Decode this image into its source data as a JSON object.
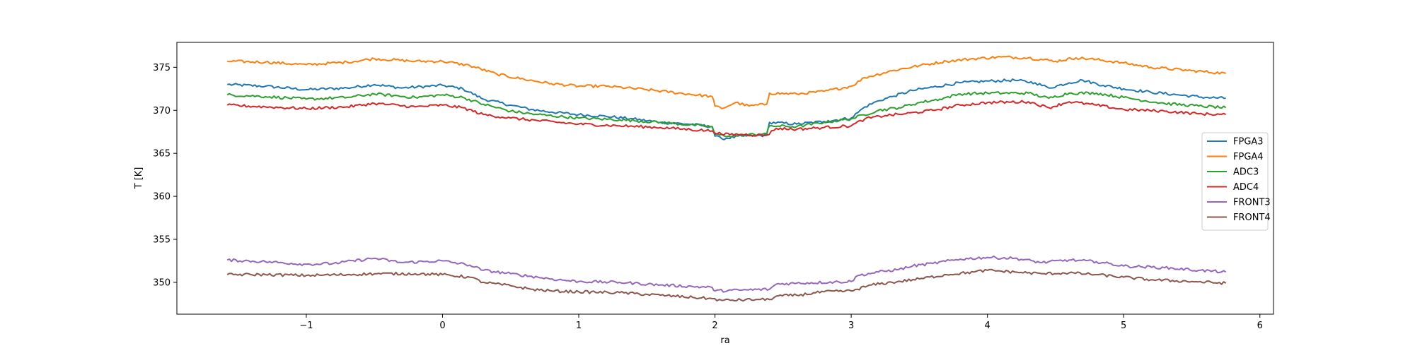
{
  "chart_data": {
    "type": "line",
    "title": "",
    "xlabel": "ra",
    "ylabel": "T [K]",
    "xlim": [
      -1.95,
      6.1
    ],
    "ylim": [
      346.3,
      377.9
    ],
    "xticks": [
      -1,
      0,
      1,
      2,
      3,
      4,
      5,
      6
    ],
    "xtick_labels": [
      "−1",
      "0",
      "1",
      "2",
      "3",
      "4",
      "5",
      "6"
    ],
    "yticks": [
      350,
      355,
      360,
      365,
      370,
      375
    ],
    "ytick_labels": [
      "350",
      "355",
      "360",
      "365",
      "370",
      "375"
    ],
    "grid": false,
    "legend": "center-right",
    "series": [
      {
        "name": "FPGA3",
        "color": "#1f77b4",
        "points": [
          [
            -1.58,
            373.0
          ],
          [
            -1.3,
            372.8
          ],
          [
            -1.0,
            372.4
          ],
          [
            -0.7,
            372.6
          ],
          [
            -0.5,
            373.0
          ],
          [
            -0.3,
            372.6
          ],
          [
            0.0,
            372.9
          ],
          [
            0.15,
            372.5
          ],
          [
            0.3,
            371.3
          ],
          [
            0.5,
            370.6
          ],
          [
            0.65,
            370.1
          ],
          [
            0.8,
            369.8
          ],
          [
            1.0,
            369.5
          ],
          [
            1.2,
            369.3
          ],
          [
            1.4,
            369.0
          ],
          [
            1.6,
            368.6
          ],
          [
            1.8,
            368.4
          ],
          [
            1.98,
            368.1
          ],
          [
            2.0,
            367.0
          ],
          [
            2.05,
            366.7
          ],
          [
            2.2,
            367.0
          ],
          [
            2.38,
            367.1
          ],
          [
            2.4,
            368.6
          ],
          [
            2.6,
            368.4
          ],
          [
            2.8,
            368.7
          ],
          [
            3.0,
            369.1
          ],
          [
            3.1,
            370.4
          ],
          [
            3.2,
            371.1
          ],
          [
            3.3,
            371.6
          ],
          [
            3.45,
            372.3
          ],
          [
            3.6,
            372.7
          ],
          [
            3.8,
            373.2
          ],
          [
            4.0,
            373.4
          ],
          [
            4.2,
            373.5
          ],
          [
            4.35,
            373.2
          ],
          [
            4.45,
            372.6
          ],
          [
            4.6,
            373.2
          ],
          [
            4.7,
            373.5
          ],
          [
            4.85,
            372.9
          ],
          [
            5.0,
            372.5
          ],
          [
            5.2,
            372.1
          ],
          [
            5.4,
            371.8
          ],
          [
            5.6,
            371.5
          ],
          [
            5.75,
            371.4
          ]
        ]
      },
      {
        "name": "FPGA4",
        "color": "#ff7f0e",
        "points": [
          [
            -1.58,
            375.7
          ],
          [
            -1.3,
            375.6
          ],
          [
            -1.0,
            375.3
          ],
          [
            -0.7,
            375.6
          ],
          [
            -0.5,
            376.0
          ],
          [
            -0.2,
            375.7
          ],
          [
            0.0,
            375.7
          ],
          [
            0.2,
            375.2
          ],
          [
            0.4,
            374.2
          ],
          [
            0.6,
            373.6
          ],
          [
            0.8,
            373.1
          ],
          [
            1.0,
            372.8
          ],
          [
            1.2,
            372.8
          ],
          [
            1.5,
            372.4
          ],
          [
            1.8,
            371.9
          ],
          [
            1.98,
            371.6
          ],
          [
            2.0,
            370.5
          ],
          [
            2.05,
            370.2
          ],
          [
            2.15,
            370.9
          ],
          [
            2.25,
            370.5
          ],
          [
            2.38,
            370.7
          ],
          [
            2.4,
            372.0
          ],
          [
            2.6,
            371.9
          ],
          [
            2.8,
            372.2
          ],
          [
            3.0,
            372.8
          ],
          [
            3.1,
            373.8
          ],
          [
            3.3,
            374.6
          ],
          [
            3.5,
            375.2
          ],
          [
            3.7,
            375.7
          ],
          [
            3.9,
            376.0
          ],
          [
            4.1,
            376.2
          ],
          [
            4.3,
            376.1
          ],
          [
            4.5,
            375.7
          ],
          [
            4.65,
            376.1
          ],
          [
            4.8,
            375.9
          ],
          [
            5.0,
            375.5
          ],
          [
            5.2,
            375.0
          ],
          [
            5.5,
            374.6
          ],
          [
            5.75,
            374.3
          ]
        ]
      },
      {
        "name": "ADC3",
        "color": "#2ca02c",
        "points": [
          [
            -1.58,
            371.8
          ],
          [
            -1.3,
            371.6
          ],
          [
            -1.0,
            371.3
          ],
          [
            -0.7,
            371.5
          ],
          [
            -0.5,
            371.9
          ],
          [
            -0.2,
            371.5
          ],
          [
            0.0,
            371.8
          ],
          [
            0.15,
            371.5
          ],
          [
            0.3,
            370.7
          ],
          [
            0.5,
            369.9
          ],
          [
            0.7,
            369.5
          ],
          [
            1.0,
            369.1
          ],
          [
            1.3,
            368.9
          ],
          [
            1.6,
            368.6
          ],
          [
            1.98,
            368.1
          ],
          [
            2.0,
            367.2
          ],
          [
            2.1,
            367.0
          ],
          [
            2.38,
            367.3
          ],
          [
            2.4,
            368.2
          ],
          [
            2.6,
            368.1
          ],
          [
            2.8,
            368.6
          ],
          [
            3.0,
            369.0
          ],
          [
            3.2,
            370.0
          ],
          [
            3.35,
            370.3
          ],
          [
            3.5,
            370.9
          ],
          [
            3.65,
            371.3
          ],
          [
            3.8,
            371.9
          ],
          [
            4.0,
            372.0
          ],
          [
            4.3,
            372.0
          ],
          [
            4.45,
            371.4
          ],
          [
            4.6,
            372.0
          ],
          [
            4.8,
            372.0
          ],
          [
            5.0,
            371.5
          ],
          [
            5.3,
            370.8
          ],
          [
            5.55,
            370.5
          ],
          [
            5.75,
            370.3
          ]
        ]
      },
      {
        "name": "ADC4",
        "color": "#d62728",
        "points": [
          [
            -1.58,
            370.6
          ],
          [
            -1.3,
            370.4
          ],
          [
            -1.0,
            370.2
          ],
          [
            -0.7,
            370.4
          ],
          [
            -0.5,
            370.8
          ],
          [
            -0.2,
            370.4
          ],
          [
            0.0,
            370.6
          ],
          [
            0.15,
            370.3
          ],
          [
            0.3,
            369.5
          ],
          [
            0.5,
            369.1
          ],
          [
            0.7,
            368.8
          ],
          [
            1.0,
            368.4
          ],
          [
            1.3,
            368.2
          ],
          [
            1.6,
            368.0
          ],
          [
            1.98,
            367.6
          ],
          [
            2.05,
            367.2
          ],
          [
            2.2,
            367.2
          ],
          [
            2.38,
            367.1
          ],
          [
            2.45,
            367.9
          ],
          [
            2.6,
            367.8
          ],
          [
            2.8,
            368.0
          ],
          [
            3.0,
            368.2
          ],
          [
            3.1,
            369.0
          ],
          [
            3.25,
            369.4
          ],
          [
            3.4,
            369.6
          ],
          [
            3.6,
            370.0
          ],
          [
            3.8,
            370.6
          ],
          [
            4.0,
            370.9
          ],
          [
            4.3,
            371.0
          ],
          [
            4.45,
            370.3
          ],
          [
            4.6,
            371.0
          ],
          [
            4.8,
            370.6
          ],
          [
            5.0,
            370.1
          ],
          [
            5.3,
            369.9
          ],
          [
            5.55,
            369.6
          ],
          [
            5.75,
            369.5
          ]
        ]
      },
      {
        "name": "FRONT3",
        "color": "#9467bd",
        "points": [
          [
            -1.58,
            352.6
          ],
          [
            -1.3,
            352.4
          ],
          [
            -1.0,
            352.1
          ],
          [
            -0.8,
            352.2
          ],
          [
            -0.5,
            352.8
          ],
          [
            -0.3,
            352.3
          ],
          [
            0.0,
            352.5
          ],
          [
            0.2,
            352.0
          ],
          [
            0.3,
            351.4
          ],
          [
            0.5,
            351.0
          ],
          [
            0.7,
            350.6
          ],
          [
            0.85,
            350.3
          ],
          [
            1.0,
            350.1
          ],
          [
            1.3,
            350.0
          ],
          [
            1.6,
            349.7
          ],
          [
            1.98,
            349.4
          ],
          [
            2.0,
            349.0
          ],
          [
            2.2,
            349.1
          ],
          [
            2.4,
            349.2
          ],
          [
            2.45,
            349.8
          ],
          [
            2.6,
            349.9
          ],
          [
            3.0,
            350.1
          ],
          [
            3.05,
            350.8
          ],
          [
            3.2,
            351.2
          ],
          [
            3.35,
            351.5
          ],
          [
            3.45,
            351.9
          ],
          [
            3.6,
            352.2
          ],
          [
            3.8,
            352.7
          ],
          [
            4.0,
            352.9
          ],
          [
            4.2,
            352.8
          ],
          [
            4.4,
            352.3
          ],
          [
            4.6,
            352.6
          ],
          [
            4.8,
            352.4
          ],
          [
            5.0,
            351.9
          ],
          [
            5.3,
            351.7
          ],
          [
            5.55,
            351.4
          ],
          [
            5.75,
            351.2
          ]
        ]
      },
      {
        "name": "FRONT4",
        "color": "#8c564b",
        "points": [
          [
            -1.58,
            350.9
          ],
          [
            -1.3,
            350.9
          ],
          [
            -1.0,
            350.8
          ],
          [
            -0.7,
            350.9
          ],
          [
            -0.5,
            351.0
          ],
          [
            -0.2,
            351.0
          ],
          [
            0.0,
            350.9
          ],
          [
            0.2,
            350.6
          ],
          [
            0.3,
            350.0
          ],
          [
            0.5,
            349.6
          ],
          [
            0.65,
            349.2
          ],
          [
            0.8,
            349.0
          ],
          [
            1.0,
            348.9
          ],
          [
            1.3,
            348.8
          ],
          [
            1.6,
            348.5
          ],
          [
            1.98,
            348.1
          ],
          [
            2.05,
            347.9
          ],
          [
            2.3,
            348.0
          ],
          [
            2.4,
            348.0
          ],
          [
            2.45,
            348.4
          ],
          [
            2.6,
            348.5
          ],
          [
            2.8,
            348.9
          ],
          [
            3.0,
            349.0
          ],
          [
            3.15,
            349.7
          ],
          [
            3.3,
            350.0
          ],
          [
            3.5,
            350.4
          ],
          [
            3.7,
            350.9
          ],
          [
            3.9,
            351.2
          ],
          [
            4.0,
            351.4
          ],
          [
            4.2,
            351.2
          ],
          [
            4.4,
            351.0
          ],
          [
            4.6,
            351.1
          ],
          [
            4.8,
            350.9
          ],
          [
            5.0,
            350.6
          ],
          [
            5.2,
            350.3
          ],
          [
            5.5,
            350.1
          ],
          [
            5.75,
            349.9
          ]
        ]
      }
    ]
  }
}
